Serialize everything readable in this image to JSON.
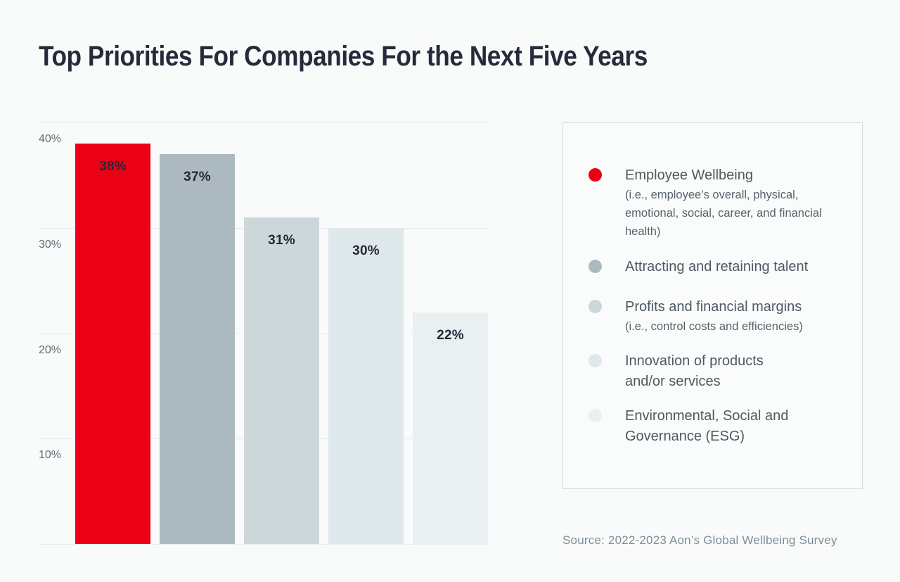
{
  "page": {
    "title": "Top Priorities For Companies For the Next Five Years",
    "source": "Source: 2022-2023 Aon’s Global Wellbeing Survey"
  },
  "chart_data": {
    "type": "bar",
    "title": "Top Priorities For Companies For the Next Five Years",
    "categories": [
      "Employee Wellbeing (i.e., employee’s overall, physical, emotional, social, career, and financial health)",
      "Attracting and retaining talent",
      "Profits and financial margins (i.e., control costs and efficiencies)",
      "Innovation of products and/or services",
      "Environmental, Social and Governance (ESG)"
    ],
    "values": [
      38,
      37,
      31,
      30,
      22
    ],
    "value_labels": [
      "38%",
      "37%",
      "31%",
      "30%",
      "22%"
    ],
    "bar_colors": [
      "#eb0016",
      "#acbabf",
      "#ccd7da",
      "#dfe8ea",
      "#eaf0f1"
    ],
    "xlabel": "",
    "ylabel": "",
    "ylim": [
      0,
      40
    ],
    "yticks": [
      {
        "value": 40,
        "label": "40%"
      },
      {
        "value": 30,
        "label": "30%"
      },
      {
        "value": 20,
        "label": "20%"
      },
      {
        "value": 10,
        "label": "10%"
      }
    ],
    "grid": true,
    "legend_position": "right"
  },
  "legend": {
    "items": [
      {
        "color": "#eb0016",
        "label_lines": [
          "Employee Wellbeing"
        ],
        "sub_lines": [
          "(i.e., employee’s overall, physical,",
          "emotional, social, career, and financial",
          "health)"
        ]
      },
      {
        "color": "#acbabf",
        "label_lines": [
          "Attracting and retaining talent"
        ],
        "sub_lines": []
      },
      {
        "color": "#ccd7da",
        "label_lines": [
          "Profits and financial margins"
        ],
        "sub_lines": [
          "(i.e., control costs and efficiencies)"
        ]
      },
      {
        "color": "#dfe8ea",
        "label_lines": [
          "Innovation of products",
          "and/or services"
        ],
        "sub_lines": []
      },
      {
        "color": "#eaf0f1",
        "label_lines": [
          "Environmental, Social and",
          "Governance (ESG)"
        ],
        "sub_lines": []
      }
    ]
  },
  "colors": {
    "accent_red": "#eb0016",
    "page_background": "#f9fbfb",
    "grid_line": "#e2ebed",
    "legend_border": "#cddce0",
    "title_text": "#262b3b",
    "axis_text": "#5f6e76",
    "source_text": "#7f8f97"
  }
}
